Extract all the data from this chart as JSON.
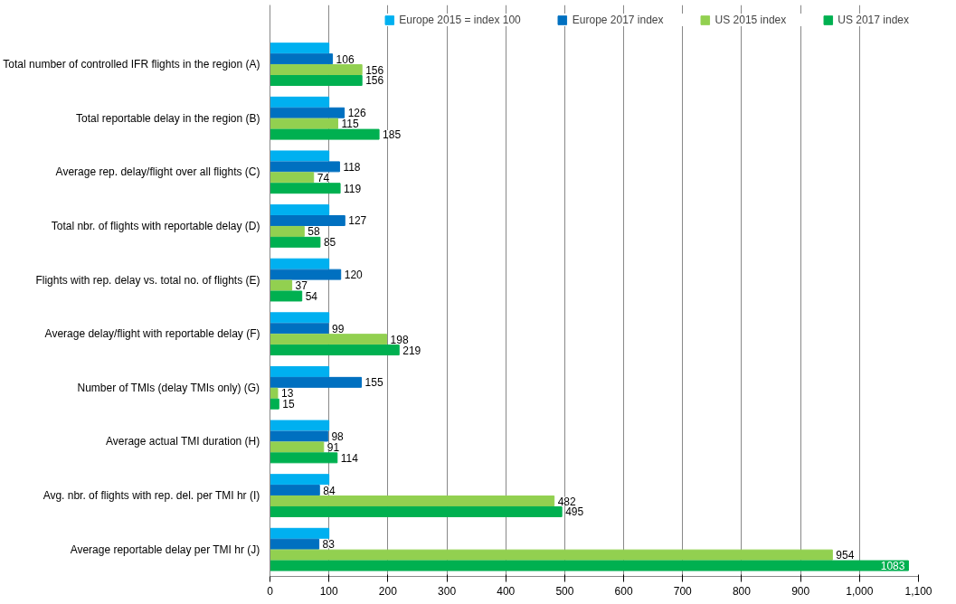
{
  "chart_data": {
    "type": "bar",
    "orientation": "horizontal",
    "categories": [
      "Total number of controlled IFR flights in the region (A)",
      "Total reportable delay in the region (B)",
      "Average rep. delay/flight over all flights (C)",
      "Total nbr. of flights with reportable delay (D)",
      "Flights with rep. delay vs. total no. of flights (E)",
      "Average delay/flight with reportable delay (F)",
      "Number of TMIs (delay TMIs only) (G)",
      "Average actual TMI duration (H)",
      "Avg. nbr. of flights with rep. del. per TMI hr (I)",
      "Average reportable delay per TMI hr (J)"
    ],
    "series": [
      {
        "name": "Europe 2015 = index 100",
        "color": "#00b0f0",
        "values": [
          100,
          100,
          100,
          100,
          100,
          100,
          100,
          100,
          100,
          100
        ],
        "value_labels": [
          null,
          null,
          null,
          null,
          null,
          null,
          null,
          null,
          null,
          null
        ]
      },
      {
        "name": "Europe 2017 index",
        "color": "#0070c0",
        "values": [
          106,
          126,
          118,
          127,
          120,
          99,
          155,
          98,
          84,
          83
        ],
        "value_labels": [
          "106",
          "126",
          "118",
          "127",
          "120",
          "99",
          "155",
          "98",
          "84",
          "83"
        ]
      },
      {
        "name": "US 2015 index",
        "color": "#92d050",
        "values": [
          156,
          115,
          74,
          58,
          37,
          198,
          13,
          91,
          482,
          954
        ],
        "value_labels": [
          "156",
          "115",
          "74",
          "58",
          "37",
          "198",
          "13",
          "91",
          "482",
          "954"
        ]
      },
      {
        "name": "US 2017 index",
        "color": "#00b050",
        "values": [
          156,
          185,
          119,
          85,
          54,
          219,
          15,
          114,
          495,
          1083
        ],
        "value_labels": [
          "156",
          "185",
          "119",
          "85",
          "54",
          "219",
          "15",
          "114",
          "495",
          "1083"
        ]
      }
    ],
    "xlim": [
      0,
      1100
    ],
    "xticks": [
      0,
      100,
      200,
      300,
      400,
      500,
      600,
      700,
      800,
      900,
      {
        "value": 1000,
        "label": "1,000"
      },
      {
        "value": 1100,
        "label": "1,100"
      }
    ],
    "grid": "x",
    "legend": "top"
  }
}
